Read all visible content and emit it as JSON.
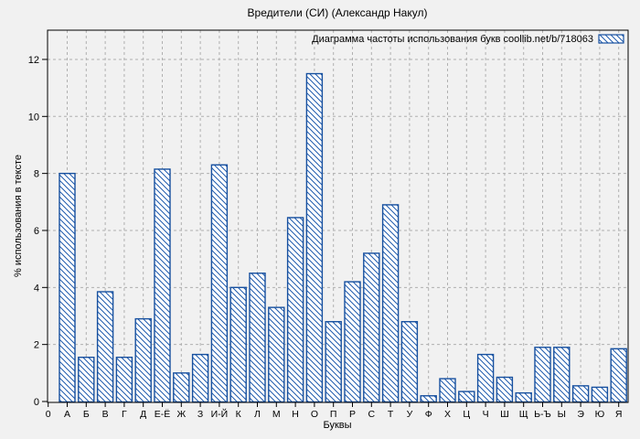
{
  "colors": {
    "bar_stroke": "#17509f",
    "hatch_line": "#1d5aad",
    "bar_fill_bg": "#ffffff",
    "grid": "#b0b0b0",
    "border": "#000000",
    "background": "#f1f1f1",
    "text": "#000000"
  },
  "chart_data": {
    "type": "bar",
    "title": "Вредители (СИ) (Александр Накул)",
    "legend_label": "Диаграмма частоты использования букв coollib.net/b/718063",
    "legend_position": "top-right-inside",
    "xlabel": "Буквы",
    "ylabel": "% использования в тексте",
    "ylim": [
      0,
      13
    ],
    "yticks": [
      0,
      2,
      4,
      6,
      8,
      10,
      12
    ],
    "grid": true,
    "categories": [
      "0",
      "А",
      "Б",
      "В",
      "Г",
      "Д",
      "Е-Ё",
      "Ж",
      "З",
      "И-Й",
      "К",
      "Л",
      "М",
      "Н",
      "О",
      "П",
      "Р",
      "С",
      "Т",
      "У",
      "Ф",
      "Х",
      "Ц",
      "Ч",
      "Ш",
      "Щ",
      "Ь-Ъ",
      "Ы",
      "Э",
      "Ю",
      "Я"
    ],
    "values": [
      0,
      8.0,
      1.55,
      3.85,
      1.55,
      2.9,
      8.15,
      1.0,
      1.65,
      8.3,
      4.0,
      4.5,
      3.3,
      6.45,
      11.5,
      2.8,
      4.2,
      5.2,
      6.9,
      2.8,
      0.2,
      0.8,
      0.35,
      1.65,
      0.85,
      0.3,
      1.9,
      1.9,
      0.55,
      0.5,
      1.85
    ]
  }
}
